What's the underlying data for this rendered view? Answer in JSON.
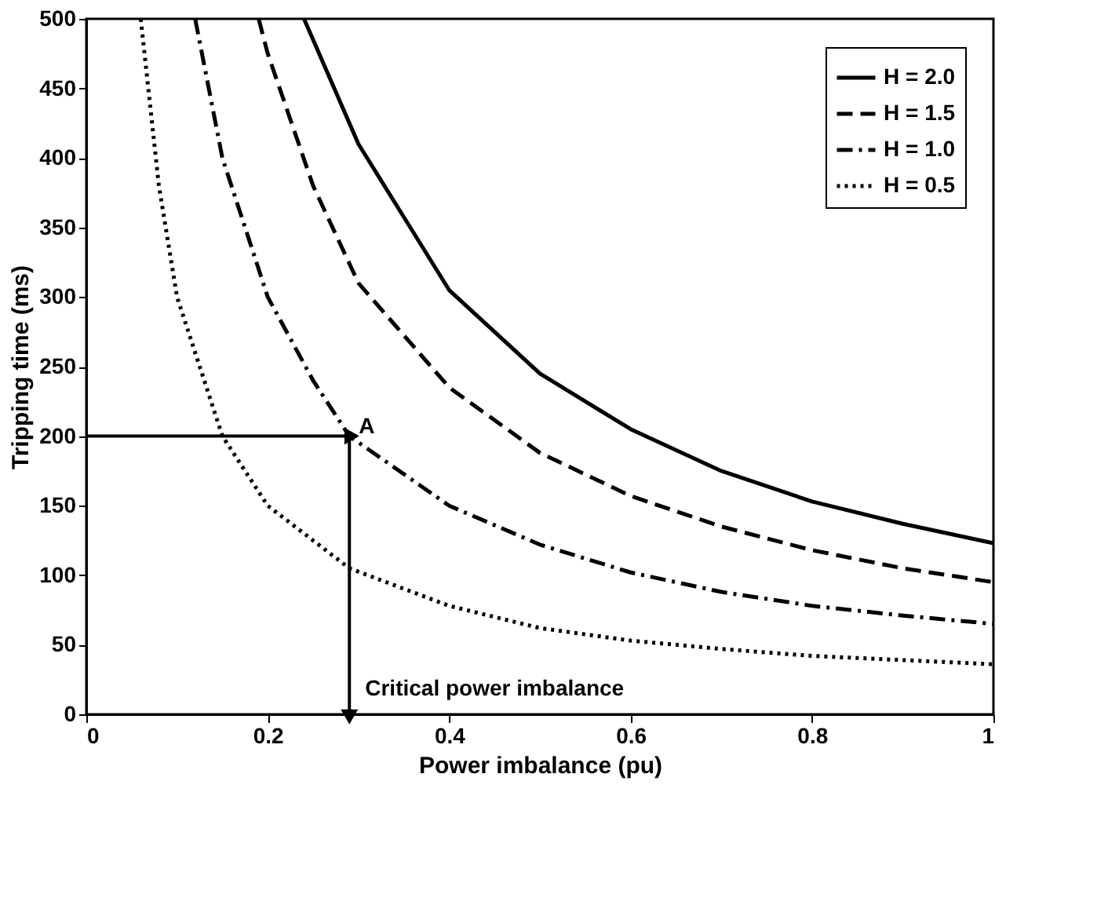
{
  "chart_data": {
    "type": "line",
    "xlabel": "Power imbalance (pu)",
    "ylabel": "Tripping time (ms)",
    "xlim": [
      0,
      1
    ],
    "xticks": [
      0,
      0.2,
      0.4,
      0.6,
      0.8,
      1
    ],
    "ylim": [
      0,
      500
    ],
    "yticks": [
      0,
      50,
      100,
      150,
      200,
      250,
      300,
      350,
      400,
      450,
      500
    ],
    "grid": false,
    "legend": "top right",
    "marker": "none",
    "series": [
      {
        "name": "H = 2.0",
        "color": "#000000",
        "line_style": "solid",
        "x": [
          0.24,
          0.3,
          0.4,
          0.5,
          0.6,
          0.7,
          0.8,
          0.9,
          1.0
        ],
        "values": [
          500,
          410,
          305,
          245,
          205,
          175,
          153,
          137,
          123
        ]
      },
      {
        "name": "H = 1.5",
        "color": "#000000",
        "line_style": "dashed",
        "x": [
          0.19,
          0.2,
          0.25,
          0.3,
          0.4,
          0.5,
          0.6,
          0.7,
          0.8,
          0.9,
          1.0
        ],
        "values": [
          500,
          475,
          380,
          310,
          235,
          188,
          157,
          135,
          118,
          105,
          95
        ]
      },
      {
        "name": "H = 1.0",
        "color": "#000000",
        "line_style": "dashdot",
        "x": [
          0.12,
          0.15,
          0.2,
          0.25,
          0.29,
          0.4,
          0.5,
          0.6,
          0.7,
          0.8,
          0.9,
          1.0
        ],
        "values": [
          500,
          400,
          300,
          240,
          200,
          150,
          122,
          102,
          88,
          78,
          71,
          65
        ]
      },
      {
        "name": "H = 0.5",
        "color": "#000000",
        "line_style": "dotted",
        "x": [
          0.06,
          0.08,
          0.1,
          0.15,
          0.2,
          0.29,
          0.4,
          0.5,
          0.6,
          0.7,
          0.8,
          0.9,
          1.0
        ],
        "values": [
          500,
          380,
          300,
          200,
          150,
          105,
          78,
          62,
          53,
          47,
          42,
          39,
          36
        ]
      }
    ],
    "annotations": [
      {
        "text": "A",
        "x": 0.29,
        "y": 200
      },
      {
        "text": "Critical power imbalance",
        "x": 0.29,
        "y": 0
      }
    ],
    "ref_lines": [
      {
        "axis": "y",
        "value": 200,
        "label": null
      },
      {
        "axis": "x",
        "value": 0.29,
        "label": null
      }
    ]
  }
}
